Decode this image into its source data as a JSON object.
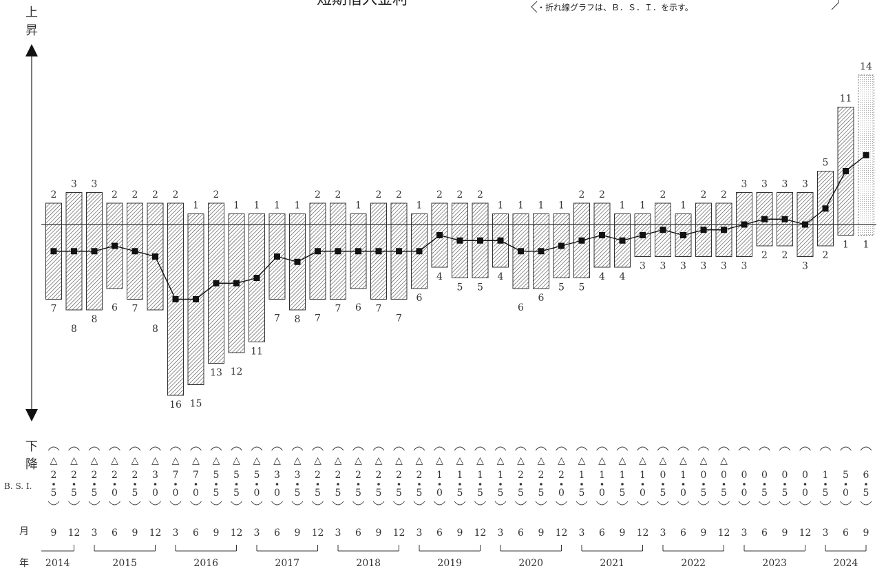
{
  "header": {
    "title": "短期借入金利",
    "note": "・折れ線グラフは、Ｂ．Ｓ．Ｉ．を示す。"
  },
  "axis": {
    "up_label": [
      "上",
      "昇"
    ],
    "down_label": [
      "下",
      "降"
    ]
  },
  "table": {
    "bsi_label": "B. S. I.",
    "month_label": "月",
    "year_label": "年",
    "sign_symbol": "△",
    "dot_symbol": "・"
  },
  "chart_data": {
    "type": "bar",
    "x": [
      "2014-09",
      "2014-12",
      "2015-03",
      "2015-06",
      "2015-09",
      "2015-12",
      "2016-03",
      "2016-06",
      "2016-09",
      "2016-12",
      "2017-03",
      "2017-06",
      "2017-09",
      "2017-12",
      "2018-03",
      "2018-06",
      "2018-09",
      "2018-12",
      "2019-03",
      "2019-06",
      "2019-09",
      "2019-12",
      "2020-03",
      "2020-06",
      "2020-09",
      "2020-12",
      "2021-03",
      "2021-06",
      "2021-09",
      "2021-12",
      "2022-03",
      "2022-06",
      "2022-09",
      "2022-12",
      "2023-03",
      "2023-06",
      "2023-09",
      "2023-12",
      "2024-03",
      "2024-06",
      "2024-09"
    ],
    "months": [
      "9",
      "12",
      "3",
      "6",
      "9",
      "12",
      "3",
      "6",
      "9",
      "12",
      "3",
      "6",
      "9",
      "12",
      "3",
      "6",
      "9",
      "12",
      "3",
      "6",
      "9",
      "12",
      "3",
      "6",
      "9",
      "12",
      "3",
      "6",
      "9",
      "12",
      "3",
      "6",
      "9",
      "12",
      "3",
      "6",
      "9",
      "12",
      "3",
      "6",
      "9"
    ],
    "years": [
      {
        "label": "2014",
        "count": 2
      },
      {
        "label": "2015",
        "count": 4
      },
      {
        "label": "2016",
        "count": 4
      },
      {
        "label": "2017",
        "count": 4
      },
      {
        "label": "2018",
        "count": 4
      },
      {
        "label": "2019",
        "count": 4
      },
      {
        "label": "2020",
        "count": 4
      },
      {
        "label": "2021",
        "count": 4
      },
      {
        "label": "2022",
        "count": 4
      },
      {
        "label": "2023",
        "count": 4
      },
      {
        "label": "2024",
        "count": 3
      }
    ],
    "series": [
      {
        "name": "上昇",
        "values": [
          2,
          3,
          3,
          2,
          2,
          2,
          2,
          1,
          2,
          1,
          1,
          1,
          1,
          2,
          2,
          1,
          2,
          2,
          1,
          2,
          2,
          2,
          1,
          1,
          1,
          1,
          2,
          2,
          1,
          1,
          2,
          1,
          2,
          2,
          3,
          3,
          3,
          3,
          5,
          11,
          14
        ]
      },
      {
        "name": "下降",
        "values": [
          7,
          8,
          8,
          6,
          7,
          8,
          16,
          15,
          13,
          12,
          11,
          7,
          8,
          7,
          7,
          6,
          7,
          7,
          6,
          4,
          5,
          5,
          4,
          6,
          6,
          5,
          5,
          4,
          4,
          3,
          3,
          3,
          3,
          3,
          3,
          2,
          2,
          3,
          2,
          1,
          1
        ]
      },
      {
        "name": "B.S.I.",
        "values": [
          -2.5,
          -2.5,
          -2.5,
          -2.0,
          -2.5,
          -3.0,
          -7.0,
          -7.0,
          -5.5,
          -5.5,
          -5.0,
          -3.0,
          -3.5,
          -2.5,
          -2.5,
          -2.5,
          -2.5,
          -2.5,
          -2.5,
          -1.0,
          -1.5,
          -1.5,
          -1.5,
          -2.5,
          -2.5,
          -2.0,
          -1.5,
          -1.0,
          -1.5,
          -1.0,
          -0.5,
          -1.0,
          -0.5,
          -0.5,
          0.0,
          0.5,
          0.5,
          0.0,
          1.5,
          5.0,
          6.5
        ]
      }
    ],
    "forecast_last": true
  }
}
